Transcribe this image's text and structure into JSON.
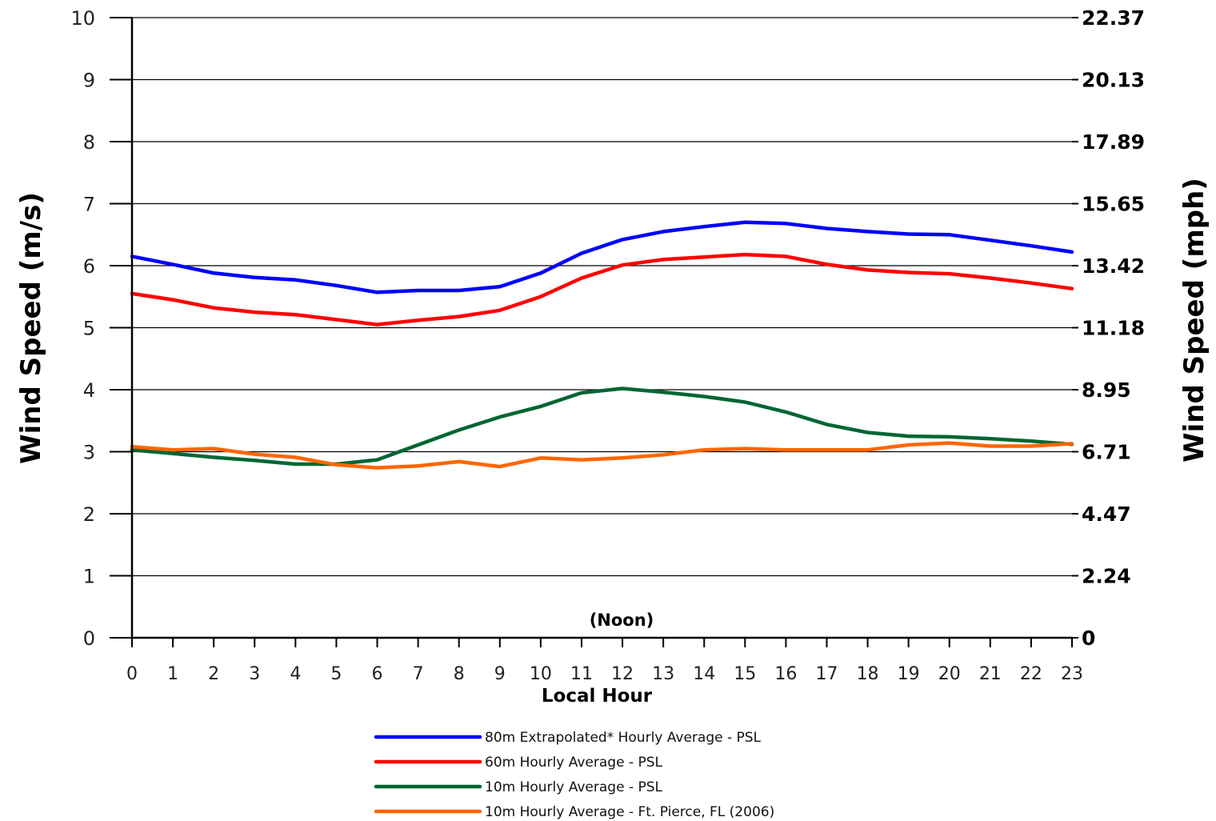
{
  "chart_data": {
    "type": "line",
    "title": "",
    "xlabel": "Local Hour",
    "ylabel": "Wind Speed (m/s)",
    "ylabel_right": "Wind Speed (mph)",
    "x": [
      0,
      1,
      2,
      3,
      4,
      5,
      6,
      7,
      8,
      9,
      10,
      11,
      12,
      13,
      14,
      15,
      16,
      17,
      18,
      19,
      20,
      21,
      22,
      23
    ],
    "x_tick_labels": [
      "0",
      "1",
      "2",
      "3",
      "4",
      "5",
      "6",
      "7",
      "8",
      "9",
      "10",
      "11",
      "12",
      "13",
      "14",
      "15",
      "16",
      "17",
      "18",
      "19",
      "20",
      "21",
      "22",
      "23"
    ],
    "ylim": [
      0,
      10
    ],
    "y_ticks": [
      0,
      1,
      2,
      3,
      4,
      5,
      6,
      7,
      8,
      9,
      10
    ],
    "y_tick_labels": [
      "0",
      "1",
      "2",
      "3",
      "4",
      "5",
      "6",
      "7",
      "8",
      "9",
      "10"
    ],
    "y_right_tick_labels": [
      "0",
      "2.24",
      "4.47",
      "6.71",
      "8.95",
      "11.18",
      "13.42",
      "15.65",
      "17.89",
      "20.13",
      "22.37"
    ],
    "grid": true,
    "legend_position": "bottom",
    "annotations": [
      {
        "text": "(Noon)",
        "x": 12
      }
    ],
    "series": [
      {
        "name": "80m Extrapolated* Hourly Average - PSL",
        "color": "#0000ff",
        "values": [
          6.15,
          6.02,
          5.88,
          5.81,
          5.77,
          5.68,
          5.57,
          5.6,
          5.6,
          5.66,
          5.88,
          6.2,
          6.42,
          6.55,
          6.63,
          6.7,
          6.68,
          6.6,
          6.55,
          6.51,
          6.5,
          6.41,
          6.32,
          6.22
        ]
      },
      {
        "name": "60m Hourly Average - PSL",
        "color": "#ff0000",
        "values": [
          5.55,
          5.45,
          5.32,
          5.25,
          5.21,
          5.13,
          5.05,
          5.12,
          5.18,
          5.28,
          5.5,
          5.8,
          6.01,
          6.1,
          6.14,
          6.18,
          6.15,
          6.02,
          5.93,
          5.89,
          5.87,
          5.8,
          5.72,
          5.63
        ]
      },
      {
        "name": "10m Hourly Average - PSL",
        "color": "#006633",
        "values": [
          3.03,
          2.97,
          2.91,
          2.86,
          2.8,
          2.8,
          2.87,
          3.11,
          3.35,
          3.56,
          3.73,
          3.95,
          4.02,
          3.96,
          3.89,
          3.8,
          3.64,
          3.44,
          3.31,
          3.25,
          3.24,
          3.21,
          3.17,
          3.12
        ]
      },
      {
        "name": "10m Hourly Average - Ft. Pierce, FL (2006)",
        "color": "#ff6600",
        "values": [
          3.08,
          3.03,
          3.05,
          2.96,
          2.91,
          2.79,
          2.74,
          2.77,
          2.84,
          2.76,
          2.9,
          2.87,
          2.9,
          2.95,
          3.03,
          3.05,
          3.03,
          3.03,
          3.03,
          3.11,
          3.14,
          3.09,
          3.09,
          3.13
        ]
      }
    ]
  }
}
